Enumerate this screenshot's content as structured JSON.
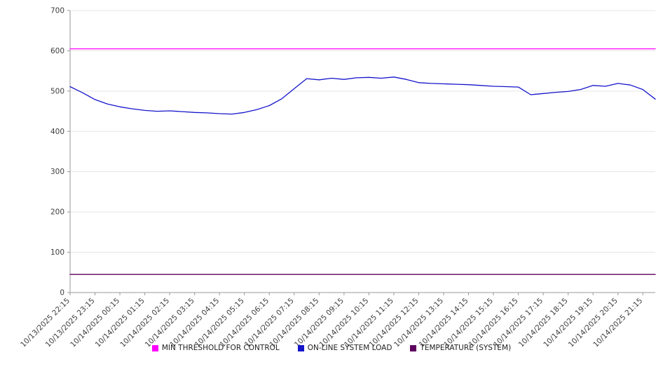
{
  "chart_data": {
    "type": "line",
    "title": "",
    "xlabel": "",
    "ylabel": "",
    "ylim": [
      0,
      700
    ],
    "y_ticks": [
      0,
      100,
      200,
      300,
      400,
      500,
      600,
      700
    ],
    "grid": "horizontal",
    "legend_position": "bottom",
    "x_label_rotation": -45,
    "label_step": 2,
    "x_tick_labels": [
      "10/13/2025 22:15",
      "10/13/2025 23:15",
      "10/14/2025 00:15",
      "10/14/2025 01:15",
      "10/14/2025 02:15",
      "10/14/2025 03:15",
      "10/14/2025 04:15",
      "10/14/2025 05:15",
      "10/14/2025 06:15",
      "10/14/2025 07:15",
      "10/14/2025 08:15",
      "10/14/2025 09:15",
      "10/14/2025 10:15",
      "10/14/2025 11:15",
      "10/14/2025 12:15",
      "10/14/2025 13:15",
      "10/14/2025 14:15",
      "10/14/2025 15:15",
      "10/14/2025 16:15",
      "10/14/2025 17:15",
      "10/14/2025 18:15",
      "10/14/2025 19:15",
      "10/14/2025 20:15",
      "10/14/2025 21:15"
    ],
    "series": [
      {
        "name": "MIN THRESHOLD FOR CONTROL",
        "color": "#ff00ff",
        "constant": 605
      },
      {
        "name": "ON-LINE SYSTEM LOAD",
        "color": "#1515cc",
        "values": [
          511,
          496,
          479,
          468,
          461,
          456,
          452,
          450,
          451,
          449,
          447,
          446,
          444,
          443,
          447,
          454,
          464,
          481,
          506,
          531,
          528,
          532,
          529,
          533,
          534,
          532,
          535,
          529,
          521,
          519,
          518,
          517,
          516,
          514,
          512,
          511,
          510,
          491,
          494,
          497,
          499,
          504,
          514,
          512,
          519,
          515,
          504,
          480
        ]
      },
      {
        "name": "TEMPERATURE (SYSTEM)",
        "color": "#5e005e",
        "constant": 45
      }
    ]
  }
}
